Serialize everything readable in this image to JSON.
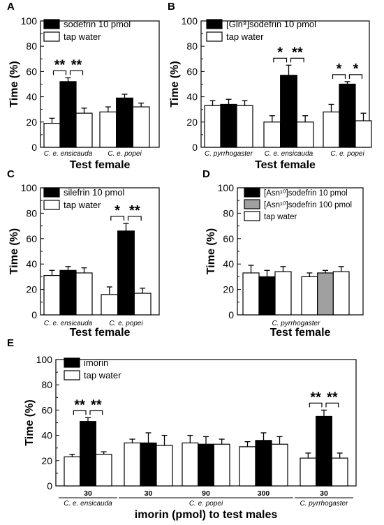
{
  "colors": {
    "test": "#000000",
    "control": "#ffffff",
    "high_dose": "#a0a0a0",
    "axis": "#000000"
  },
  "chart_data": [
    {
      "panel": "A",
      "type": "bar",
      "xlabel": "Test female",
      "ylabel": "Time (%)",
      "ylim": [
        0,
        100
      ],
      "yticks": [
        0,
        20,
        40,
        60,
        80,
        100
      ],
      "legend": [
        {
          "key": "test",
          "text": "sodefrin 10 pmol"
        },
        {
          "key": "control",
          "text": "tap water"
        }
      ],
      "groups": [
        {
          "label": "C. e. ensicauda",
          "bars": [
            {
              "fill": "control",
              "value": 19,
              "error": 4
            },
            {
              "fill": "test",
              "value": 52,
              "error": 3
            },
            {
              "fill": "control",
              "value": 27,
              "error": 4
            }
          ],
          "significance": [
            "**",
            "**"
          ]
        },
        {
          "label": "C. e. popei",
          "bars": [
            {
              "fill": "control",
              "value": 28,
              "error": 4
            },
            {
              "fill": "test",
              "value": 39,
              "error": 3
            },
            {
              "fill": "control",
              "value": 32,
              "error": 3
            }
          ],
          "significance": []
        }
      ]
    },
    {
      "panel": "B",
      "type": "bar",
      "xlabel": "Test female",
      "ylabel": "Time (%)",
      "ylim": [
        0,
        100
      ],
      "yticks": [
        0,
        20,
        40,
        60,
        80,
        100
      ],
      "legend": [
        {
          "key": "test",
          "text": "[Gln⁸]sodefrin 10 pmol"
        },
        {
          "key": "control",
          "text": "tap water"
        }
      ],
      "groups": [
        {
          "label": "C. pyrrhogaster",
          "bars": [
            {
              "fill": "control",
              "value": 33,
              "error": 4
            },
            {
              "fill": "test",
              "value": 34,
              "error": 4
            },
            {
              "fill": "control",
              "value": 33,
              "error": 4
            }
          ],
          "significance": []
        },
        {
          "label": "C. e. ensicauda",
          "bars": [
            {
              "fill": "control",
              "value": 20,
              "error": 5
            },
            {
              "fill": "test",
              "value": 57,
              "error": 8
            },
            {
              "fill": "control",
              "value": 20,
              "error": 5
            }
          ],
          "significance": [
            "*",
            "**"
          ]
        },
        {
          "label": "C. e. popei",
          "bars": [
            {
              "fill": "control",
              "value": 28,
              "error": 6
            },
            {
              "fill": "test",
              "value": 50,
              "error": 2
            },
            {
              "fill": "control",
              "value": 21,
              "error": 6
            }
          ],
          "significance": [
            "*",
            "*"
          ]
        }
      ]
    },
    {
      "panel": "C",
      "type": "bar",
      "xlabel": "Test female",
      "ylabel": "Time (%)",
      "ylim": [
        0,
        100
      ],
      "yticks": [
        0,
        20,
        40,
        60,
        80,
        100
      ],
      "legend": [
        {
          "key": "test",
          "text": "silefrin 10 pmol"
        },
        {
          "key": "control",
          "text": "tap water"
        }
      ],
      "groups": [
        {
          "label": "C. e. ensicauda",
          "bars": [
            {
              "fill": "control",
              "value": 31,
              "error": 4
            },
            {
              "fill": "test",
              "value": 35,
              "error": 3
            },
            {
              "fill": "control",
              "value": 33,
              "error": 4
            }
          ],
          "significance": []
        },
        {
          "label": "C. e. popei",
          "bars": [
            {
              "fill": "control",
              "value": 16,
              "error": 6
            },
            {
              "fill": "test",
              "value": 66,
              "error": 6
            },
            {
              "fill": "control",
              "value": 17,
              "error": 4
            }
          ],
          "significance": [
            "*",
            "**"
          ]
        }
      ]
    },
    {
      "panel": "D",
      "type": "bar",
      "xlabel": "Test female",
      "ylabel": "Time (%)",
      "ylim": [
        0,
        100
      ],
      "yticks": [
        0,
        20,
        40,
        60,
        80,
        100
      ],
      "legend": [
        {
          "key": "test",
          "text": "[Asn¹⁰]sodefrin 10 pmol"
        },
        {
          "key": "high_dose",
          "text": "[Asn¹⁰]sodefrin 100 pmol"
        },
        {
          "key": "control",
          "text": "tap water"
        }
      ],
      "group_label": "C. pyrrhogaster",
      "groups": [
        {
          "label": "",
          "bars": [
            {
              "fill": "control",
              "value": 33,
              "error": 6
            },
            {
              "fill": "test",
              "value": 30,
              "error": 5
            },
            {
              "fill": "control",
              "value": 34,
              "error": 4
            }
          ],
          "significance": []
        },
        {
          "label": "",
          "bars": [
            {
              "fill": "control",
              "value": 30,
              "error": 3
            },
            {
              "fill": "high_dose",
              "value": 33,
              "error": 2
            },
            {
              "fill": "control",
              "value": 34,
              "error": 4
            }
          ],
          "significance": []
        }
      ]
    },
    {
      "panel": "E",
      "type": "bar",
      "xlabel": "imorin (pmol) to test males",
      "ylabel": "Time (%)",
      "ylim": [
        0,
        100
      ],
      "yticks": [
        0,
        20,
        40,
        60,
        80,
        100
      ],
      "legend": [
        {
          "key": "test",
          "text": "imorin"
        },
        {
          "key": "control",
          "text": "tap water"
        }
      ],
      "groups": [
        {
          "label": "30",
          "bars": [
            {
              "fill": "control",
              "value": 23,
              "error": 2
            },
            {
              "fill": "test",
              "value": 51,
              "error": 3
            },
            {
              "fill": "control",
              "value": 25,
              "error": 2
            }
          ],
          "significance": [
            "**",
            "**"
          ]
        },
        {
          "label": "30",
          "bars": [
            {
              "fill": "control",
              "value": 34,
              "error": 3
            },
            {
              "fill": "test",
              "value": 34,
              "error": 8
            },
            {
              "fill": "control",
              "value": 32,
              "error": 8
            }
          ],
          "significance": []
        },
        {
          "label": "90",
          "bars": [
            {
              "fill": "control",
              "value": 34,
              "error": 6
            },
            {
              "fill": "test",
              "value": 33,
              "error": 6
            },
            {
              "fill": "control",
              "value": 33,
              "error": 4
            }
          ],
          "significance": []
        },
        {
          "label": "300",
          "bars": [
            {
              "fill": "control",
              "value": 31,
              "error": 4
            },
            {
              "fill": "test",
              "value": 36,
              "error": 6
            },
            {
              "fill": "control",
              "value": 33,
              "error": 6
            }
          ],
          "significance": []
        },
        {
          "label": "30",
          "bars": [
            {
              "fill": "control",
              "value": 22,
              "error": 4
            },
            {
              "fill": "test",
              "value": 55,
              "error": 5
            },
            {
              "fill": "control",
              "value": 22,
              "error": 4
            }
          ],
          "significance": [
            "**",
            "**"
          ]
        }
      ],
      "species": [
        {
          "text": "C. e. ensicauda",
          "groups": [
            0
          ]
        },
        {
          "text": "C. e. popei",
          "groups": [
            1,
            2,
            3
          ]
        },
        {
          "text": "C. pyrrhogaster",
          "groups": [
            4
          ]
        }
      ]
    }
  ]
}
